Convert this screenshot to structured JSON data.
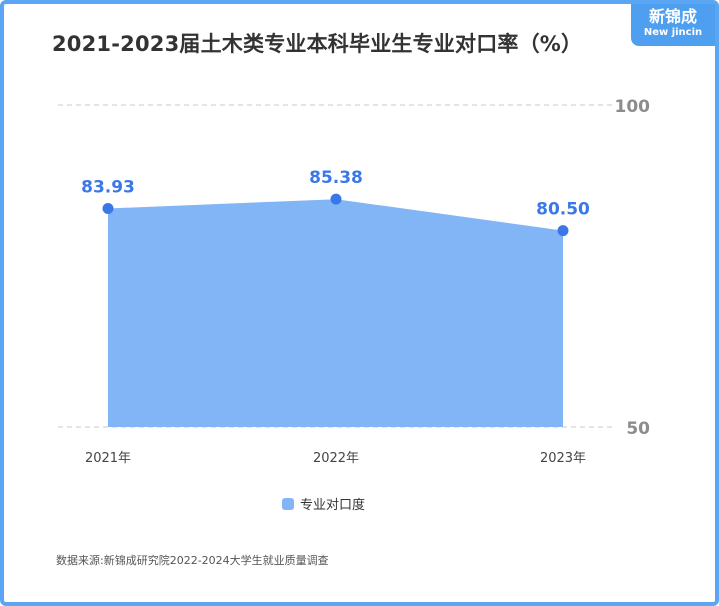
{
  "title": "2021-2023届土木类专业本科毕业生专业对口率（%）",
  "logo": {
    "cn": "新锦成",
    "en": "New jincin"
  },
  "chart_data": {
    "type": "area",
    "categories": [
      "2021年",
      "2022年",
      "2023年"
    ],
    "series": [
      {
        "name": "专业对口度",
        "values": [
          83.93,
          85.38,
          80.5
        ],
        "labels": [
          "83.93",
          "85.38",
          "80.50"
        ]
      }
    ],
    "ylim": [
      50,
      100
    ],
    "yticks": [
      "100",
      "50"
    ],
    "grid": true,
    "legend": "bottom",
    "colors": {
      "fill": "#81b5f6",
      "point": "#3b78e7",
      "label": "#3b78e7",
      "grid": "#c8c8c8"
    }
  },
  "legend": {
    "label": "专业对口度"
  },
  "source": "数据来源:新锦成研究院2022-2024大学生就业质量调查"
}
